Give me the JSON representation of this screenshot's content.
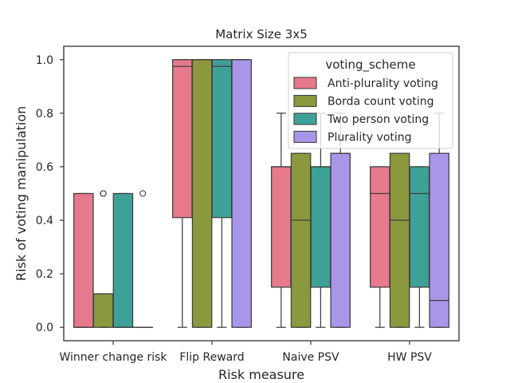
{
  "chart_data": {
    "type": "box",
    "title": "Matrix Size 3x5",
    "xlabel": "Risk measure",
    "ylabel": "Risk of voting manipulation",
    "ylim": [
      -0.05,
      1.05
    ],
    "yticks": [
      0.0,
      0.2,
      0.4,
      0.6,
      0.8,
      1.0
    ],
    "ytick_labels": [
      "0.0",
      "0.2",
      "0.4",
      "0.6",
      "0.8",
      "1.0"
    ],
    "grid": false,
    "legend_position": "top-right",
    "legend_title": "voting_scheme",
    "categories": [
      "Winner change risk",
      "Flip Reward",
      "Naive PSV",
      "HW PSV"
    ],
    "series": [
      {
        "name": "Anti-plurality voting",
        "color": "#e7798c",
        "boxes": [
          {
            "whislo": 0.0,
            "q1": 0.0,
            "med": 0.0,
            "q3": 0.5,
            "whishi": 0.5,
            "fliers": []
          },
          {
            "whislo": 0.0,
            "q1": 0.41,
            "med": 0.975,
            "q3": 1.0,
            "whishi": 1.0,
            "fliers": []
          },
          {
            "whislo": 0.0,
            "q1": 0.15,
            "med": 0.6,
            "q3": 0.6,
            "whishi": 0.8,
            "fliers": []
          },
          {
            "whislo": 0.0,
            "q1": 0.15,
            "med": 0.5,
            "q3": 0.6,
            "whishi": 0.6,
            "fliers": []
          }
        ]
      },
      {
        "name": "Borda count voting",
        "color": "#8b983e",
        "boxes": [
          {
            "whislo": 0.0,
            "q1": 0.0,
            "med": 0.125,
            "q3": 0.125,
            "whishi": 0.125,
            "fliers": [
              0.5,
              0.5
            ]
          },
          {
            "whislo": 0.0,
            "q1": 0.0,
            "med": 1.0,
            "q3": 1.0,
            "whishi": 1.0,
            "fliers": []
          },
          {
            "whislo": 0.0,
            "q1": 0.0,
            "med": 0.4,
            "q3": 0.65,
            "whishi": 0.65,
            "fliers": []
          },
          {
            "whislo": 0.0,
            "q1": 0.0,
            "med": 0.4,
            "q3": 0.65,
            "whishi": 0.65,
            "fliers": []
          }
        ]
      },
      {
        "name": "Two person voting",
        "color": "#3ea198",
        "boxes": [
          {
            "whislo": 0.0,
            "q1": 0.0,
            "med": 0.0,
            "q3": 0.5,
            "whishi": 0.5,
            "fliers": []
          },
          {
            "whislo": 0.0,
            "q1": 0.41,
            "med": 0.975,
            "q3": 1.0,
            "whishi": 1.0,
            "fliers": []
          },
          {
            "whislo": 0.0,
            "q1": 0.15,
            "med": 0.6,
            "q3": 0.6,
            "whishi": 0.8,
            "fliers": []
          },
          {
            "whislo": 0.0,
            "q1": 0.15,
            "med": 0.5,
            "q3": 0.6,
            "whishi": 0.6,
            "fliers": []
          }
        ]
      },
      {
        "name": "Plurality voting",
        "color": "#a996e9",
        "boxes": [
          {
            "whislo": 0.0,
            "q1": 0.0,
            "med": 0.0,
            "q3": 0.0,
            "whishi": 0.0,
            "fliers": [
              0.5
            ]
          },
          {
            "whislo": 0.0,
            "q1": 0.0,
            "med": 1.0,
            "q3": 1.0,
            "whishi": 1.0,
            "fliers": []
          },
          {
            "whislo": 0.0,
            "q1": 0.0,
            "med": 0.65,
            "q3": 0.65,
            "whishi": 0.8,
            "fliers": []
          },
          {
            "whislo": 0.0,
            "q1": 0.0,
            "med": 0.1,
            "q3": 0.65,
            "whishi": 0.8,
            "fliers": []
          }
        ]
      }
    ]
  }
}
